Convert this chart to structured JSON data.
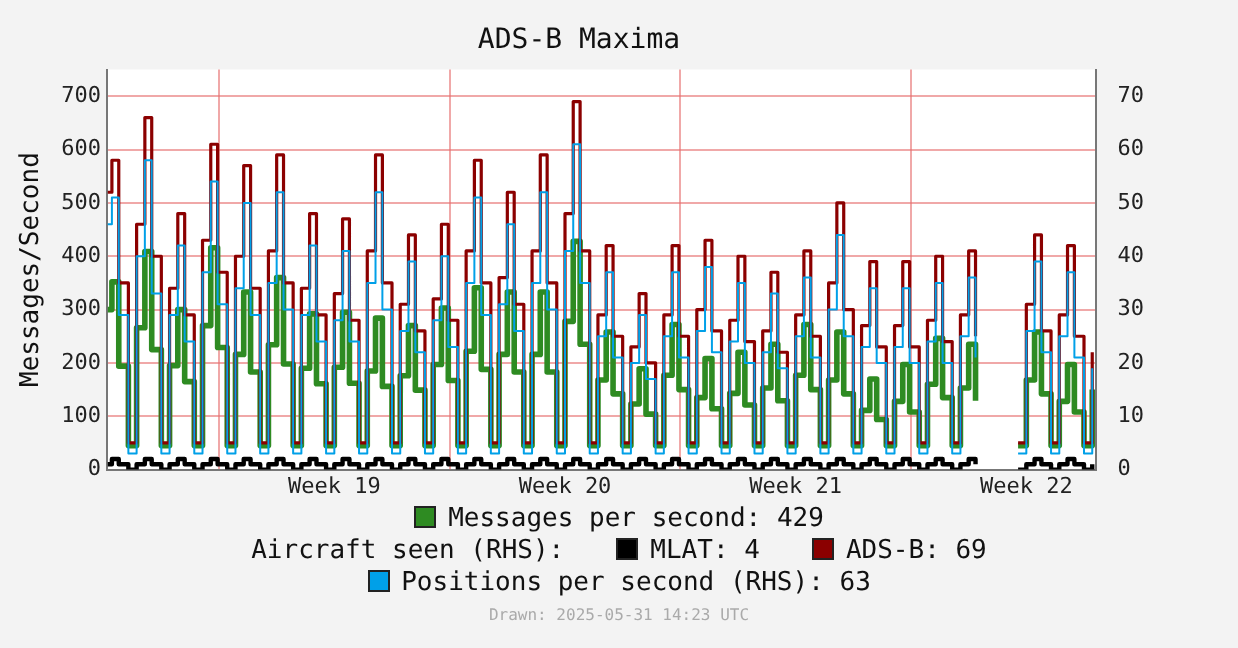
{
  "chart_data": {
    "type": "step",
    "title": "ADS-B Maxima",
    "ylabel": "Messages/Second",
    "legend_title": "Aircraft seen (RHS):",
    "legend": "bottom",
    "grid": true,
    "annotations": [
      "Drawn: 2025-05-31 14:23 UTC"
    ],
    "xlim": [
      "2025-05-01T14:23",
      "2025-05-31T14:23"
    ],
    "xticks": [
      {
        "value": "2025-05-05T00:00",
        "label": null
      },
      {
        "value": "2025-05-08T12:00",
        "label": "Week 19"
      },
      {
        "value": "2025-05-12T00:00",
        "label": null
      },
      {
        "value": "2025-05-15T12:00",
        "label": "Week 20"
      },
      {
        "value": "2025-05-19T00:00",
        "label": null
      },
      {
        "value": "2025-05-22T12:00",
        "label": "Week 21"
      },
      {
        "value": "2025-05-26T00:00",
        "label": null
      },
      {
        "value": "2025-05-29T12:00",
        "label": "Week 22"
      }
    ],
    "ylim": [
      0,
      750
    ],
    "yticks": [
      0,
      100,
      200,
      300,
      400,
      500,
      600,
      700
    ],
    "y2lim": [
      0,
      75
    ],
    "y2ticks": [
      0,
      10,
      20,
      30,
      40,
      50,
      60,
      70
    ],
    "x": [
      "2025-05-01T15:00",
      "2025-05-01T18:00",
      "2025-05-01T23:00",
      "2025-05-02T06:00",
      "2025-05-02T12:00",
      "2025-05-02T18:00",
      "2025-05-02T23:00",
      "2025-05-03T06:00",
      "2025-05-03T12:00",
      "2025-05-03T18:00",
      "2025-05-03T23:00",
      "2025-05-04T06:00",
      "2025-05-04T12:00",
      "2025-05-04T18:00",
      "2025-05-04T23:00",
      "2025-05-05T06:00",
      "2025-05-05T12:00",
      "2025-05-05T18:00",
      "2025-05-05T23:00",
      "2025-05-06T06:00",
      "2025-05-06T12:00",
      "2025-05-06T18:00",
      "2025-05-06T23:00",
      "2025-05-07T06:00",
      "2025-05-07T12:00",
      "2025-05-07T18:00",
      "2025-05-07T23:00",
      "2025-05-08T06:00",
      "2025-05-08T12:00",
      "2025-05-08T18:00",
      "2025-05-08T23:00",
      "2025-05-09T06:00",
      "2025-05-09T12:00",
      "2025-05-09T18:00",
      "2025-05-09T23:00",
      "2025-05-10T06:00",
      "2025-05-10T12:00",
      "2025-05-10T18:00",
      "2025-05-10T23:00",
      "2025-05-11T06:00",
      "2025-05-11T12:00",
      "2025-05-11T18:00",
      "2025-05-11T23:00",
      "2025-05-12T06:00",
      "2025-05-12T12:00",
      "2025-05-12T18:00",
      "2025-05-12T23:00",
      "2025-05-13T06:00",
      "2025-05-13T12:00",
      "2025-05-13T18:00",
      "2025-05-13T23:00",
      "2025-05-14T06:00",
      "2025-05-14T12:00",
      "2025-05-14T18:00",
      "2025-05-14T23:00",
      "2025-05-15T06:00",
      "2025-05-15T12:00",
      "2025-05-15T18:00",
      "2025-05-15T23:00",
      "2025-05-16T06:00",
      "2025-05-16T12:00",
      "2025-05-16T18:00",
      "2025-05-16T23:00",
      "2025-05-17T06:00",
      "2025-05-17T12:00",
      "2025-05-17T18:00",
      "2025-05-17T23:00",
      "2025-05-18T06:00",
      "2025-05-18T12:00",
      "2025-05-18T18:00",
      "2025-05-18T23:00",
      "2025-05-19T06:00",
      "2025-05-19T12:00",
      "2025-05-19T18:00",
      "2025-05-19T23:00",
      "2025-05-20T06:00",
      "2025-05-20T12:00",
      "2025-05-20T18:00",
      "2025-05-20T23:00",
      "2025-05-21T06:00",
      "2025-05-21T12:00",
      "2025-05-21T18:00",
      "2025-05-21T23:00",
      "2025-05-22T06:00",
      "2025-05-22T12:00",
      "2025-05-22T18:00",
      "2025-05-22T23:00",
      "2025-05-23T06:00",
      "2025-05-23T12:00",
      "2025-05-23T18:00",
      "2025-05-23T23:00",
      "2025-05-24T06:00",
      "2025-05-24T12:00",
      "2025-05-24T18:00",
      "2025-05-24T23:00",
      "2025-05-25T06:00",
      "2025-05-25T12:00",
      "2025-05-25T18:00",
      "2025-05-25T23:00",
      "2025-05-26T06:00",
      "2025-05-26T12:00",
      "2025-05-26T18:00",
      "2025-05-26T23:00",
      "2025-05-27T06:00",
      "2025-05-27T12:00",
      "2025-05-27T18:00",
      "2025-05-27T23:00",
      "2025-05-28T06:00",
      "2025-05-28T12:00",
      "2025-05-28T18:00",
      "2025-05-28T23:00",
      "2025-05-29T06:00",
      "2025-05-29T12:00",
      "2025-05-29T18:00",
      "2025-05-29T23:00",
      "2025-05-30T06:00",
      "2025-05-30T12:00",
      "2025-05-30T18:00",
      "2025-05-30T23:00",
      "2025-05-31T06:00",
      "2025-05-31T12:00"
    ],
    "series": [
      {
        "name": "Messages per second: 429",
        "color": "#2e8b22",
        "values": [
          300,
          352,
          194,
          45,
          266,
          409,
          225,
          45,
          195,
          300,
          165,
          45,
          270,
          416,
          229,
          45,
          216,
          333,
          183,
          45,
          234,
          360,
          198,
          45,
          190,
          292,
          161,
          45,
          192,
          295,
          162,
          45,
          185,
          284,
          156,
          45,
          176,
          270,
          149,
          45,
          197,
          303,
          167,
          45,
          222,
          341,
          188,
          45,
          216,
          333,
          183,
          45,
          216,
          333,
          183,
          45,
          278,
          428,
          235,
          45,
          168,
          258,
          142,
          45,
          123,
          189,
          104,
          45,
          177,
          272,
          150,
          45,
          135,
          208,
          114,
          45,
          143,
          220,
          121,
          45,
          153,
          235,
          129,
          45,
          177,
          272,
          150,
          45,
          168,
          258,
          142,
          45,
          111,
          170,
          94,
          45,
          128,
          197,
          108,
          45,
          160,
          246,
          135,
          45,
          153,
          235,
          129,
          null,
          null,
          null,
          null,
          45,
          168,
          258,
          142,
          45,
          128,
          197,
          108,
          45,
          150
        ]
      },
      {
        "name": "MLAT: 4",
        "color": "#000000",
        "axis": "y2",
        "values": [
          1,
          2,
          1,
          0,
          1,
          2,
          1,
          0,
          1,
          2,
          1,
          0,
          1,
          2,
          1,
          0,
          1,
          2,
          1,
          0,
          1,
          2,
          1,
          0,
          1,
          2,
          1,
          0,
          1,
          2,
          1,
          0,
          1,
          2,
          1,
          0,
          1,
          2,
          1,
          0,
          1,
          2,
          1,
          0,
          1,
          2,
          1,
          0,
          1,
          2,
          1,
          0,
          1,
          2,
          1,
          0,
          1,
          2,
          1,
          0,
          1,
          2,
          1,
          0,
          1,
          2,
          1,
          0,
          1,
          2,
          1,
          0,
          1,
          2,
          1,
          0,
          1,
          2,
          1,
          0,
          1,
          2,
          1,
          0,
          1,
          2,
          1,
          0,
          1,
          2,
          1,
          0,
          1,
          2,
          1,
          0,
          1,
          2,
          1,
          0,
          1,
          2,
          1,
          0,
          1,
          2,
          1,
          null,
          null,
          null,
          null,
          0,
          1,
          2,
          1,
          0,
          1,
          2,
          1,
          0,
          1
        ]
      },
      {
        "name": "ADS-B: 69",
        "color": "#8b0000",
        "axis": "y2",
        "values": [
          52,
          58,
          35,
          5,
          46,
          66,
          40,
          5,
          34,
          48,
          29,
          5,
          43,
          61,
          37,
          5,
          40,
          57,
          34,
          5,
          41,
          59,
          35,
          5,
          34,
          48,
          29,
          5,
          33,
          47,
          28,
          5,
          41,
          59,
          35,
          5,
          31,
          44,
          26,
          5,
          32,
          46,
          28,
          5,
          41,
          58,
          35,
          5,
          36,
          52,
          31,
          5,
          41,
          59,
          35,
          5,
          48,
          69,
          41,
          5,
          29,
          42,
          25,
          5,
          23,
          33,
          20,
          5,
          29,
          42,
          25,
          5,
          30,
          43,
          26,
          5,
          28,
          40,
          24,
          5,
          26,
          37,
          22,
          5,
          29,
          41,
          25,
          5,
          35,
          50,
          30,
          5,
          27,
          39,
          23,
          5,
          27,
          39,
          23,
          5,
          28,
          40,
          24,
          5,
          29,
          41,
          25,
          null,
          null,
          null,
          null,
          5,
          31,
          44,
          26,
          5,
          29,
          42,
          25,
          5,
          22
        ]
      },
      {
        "name": "Positions per second (RHS): 63",
        "color": "#00a0e8",
        "axis": "y2",
        "values": [
          46,
          51,
          29,
          3,
          40,
          58,
          33,
          3,
          29,
          42,
          24,
          3,
          37,
          54,
          31,
          3,
          34,
          50,
          29,
          3,
          35,
          52,
          30,
          3,
          29,
          42,
          24,
          3,
          28,
          41,
          24,
          3,
          35,
          52,
          30,
          3,
          26,
          39,
          22,
          3,
          28,
          40,
          23,
          3,
          35,
          51,
          29,
          3,
          31,
          46,
          26,
          3,
          35,
          52,
          30,
          3,
          41,
          61,
          35,
          3,
          25,
          37,
          21,
          3,
          20,
          29,
          17,
          3,
          25,
          37,
          21,
          3,
          26,
          38,
          22,
          3,
          24,
          35,
          20,
          3,
          22,
          33,
          19,
          3,
          25,
          36,
          21,
          3,
          30,
          44,
          25,
          3,
          23,
          34,
          20,
          3,
          23,
          34,
          20,
          3,
          24,
          35,
          20,
          3,
          25,
          36,
          21,
          null,
          null,
          null,
          null,
          3,
          26,
          39,
          22,
          3,
          25,
          37,
          21,
          3,
          19
        ]
      }
    ]
  }
}
